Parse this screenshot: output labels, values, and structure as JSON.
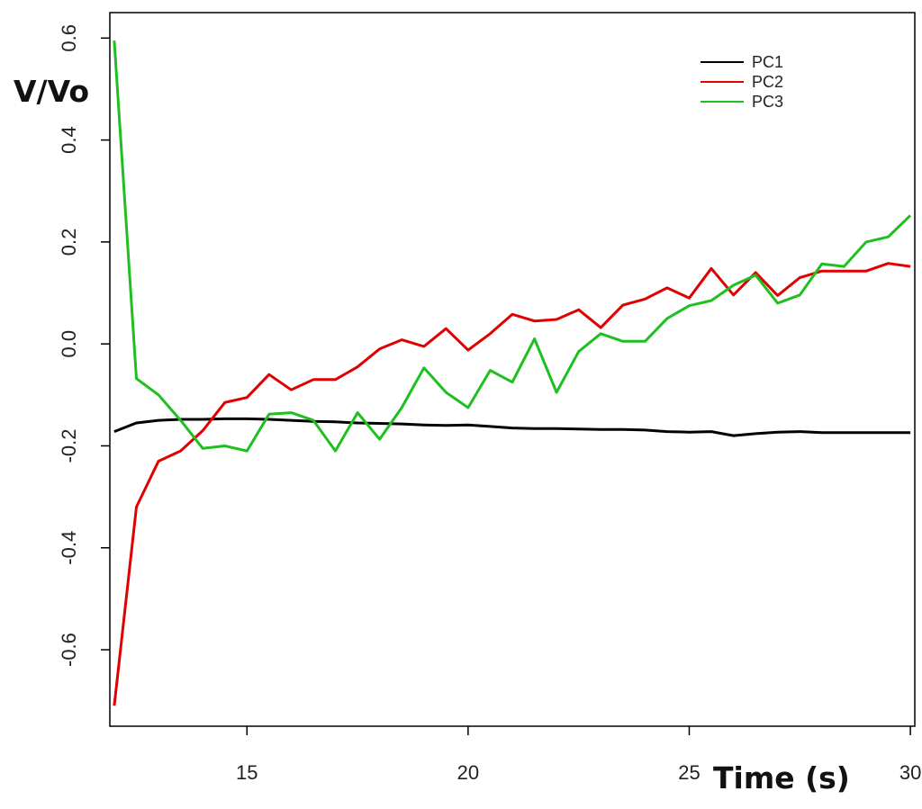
{
  "chart_data": {
    "type": "line",
    "title": "",
    "xlabel": "Time (s)",
    "ylabel": "V/Vo",
    "xlim": [
      11.9,
      30.1
    ],
    "ylim": [
      -0.75,
      0.65
    ],
    "xticks": [
      15,
      20,
      25,
      30
    ],
    "xtick_labels": [
      "15",
      "20",
      "25",
      "30"
    ],
    "yticks": [
      -0.6,
      -0.4,
      -0.2,
      0.0,
      0.2,
      0.4,
      0.6
    ],
    "ytick_labels": [
      "-0.6",
      "-0.4",
      "-0.2",
      "0.0",
      "0.2",
      "0.4",
      "0.6"
    ],
    "grid": false,
    "legend_position": "top-right",
    "x": [
      12.0,
      12.5,
      13.0,
      13.5,
      14.0,
      14.5,
      15.0,
      15.5,
      16.0,
      16.5,
      17.0,
      17.5,
      18.0,
      18.5,
      19.0,
      19.5,
      20.0,
      20.5,
      21.0,
      21.5,
      22.0,
      22.5,
      23.0,
      23.5,
      24.0,
      24.5,
      25.0,
      25.5,
      26.0,
      26.5,
      27.0,
      27.5,
      28.0,
      28.5,
      29.0,
      29.5,
      30.0
    ],
    "series": [
      {
        "name": "PC1",
        "color": "#000000",
        "values": [
          -0.172,
          -0.155,
          -0.15,
          -0.148,
          -0.148,
          -0.147,
          -0.147,
          -0.148,
          -0.15,
          -0.152,
          -0.153,
          -0.155,
          -0.156,
          -0.157,
          -0.159,
          -0.16,
          -0.159,
          -0.162,
          -0.165,
          -0.166,
          -0.166,
          -0.167,
          -0.168,
          -0.168,
          -0.169,
          -0.172,
          -0.173,
          -0.172,
          -0.18,
          -0.176,
          -0.173,
          -0.172,
          -0.174,
          -0.174,
          -0.174,
          -0.174,
          -0.174
        ]
      },
      {
        "name": "PC2",
        "color": "#e00000",
        "values": [
          -0.71,
          -0.32,
          -0.23,
          -0.21,
          -0.17,
          -0.115,
          -0.105,
          -0.06,
          -0.09,
          -0.07,
          -0.07,
          -0.045,
          -0.01,
          0.008,
          -0.005,
          0.03,
          -0.012,
          0.02,
          0.058,
          0.045,
          0.048,
          0.067,
          0.032,
          0.076,
          0.088,
          0.11,
          0.09,
          0.148,
          0.096,
          0.14,
          0.095,
          0.13,
          0.143,
          0.143,
          0.143,
          0.158,
          0.152
        ]
      },
      {
        "name": "PC3",
        "color": "#1fbf1f",
        "values": [
          0.595,
          -0.068,
          -0.1,
          -0.15,
          -0.205,
          -0.2,
          -0.21,
          -0.138,
          -0.135,
          -0.15,
          -0.21,
          -0.135,
          -0.187,
          -0.125,
          -0.047,
          -0.095,
          -0.125,
          -0.052,
          -0.075,
          0.01,
          -0.095,
          -0.015,
          0.02,
          0.005,
          0.005,
          0.05,
          0.075,
          0.085,
          0.115,
          0.135,
          0.08,
          0.096,
          0.157,
          0.152,
          0.2,
          0.21,
          0.252
        ]
      }
    ]
  }
}
